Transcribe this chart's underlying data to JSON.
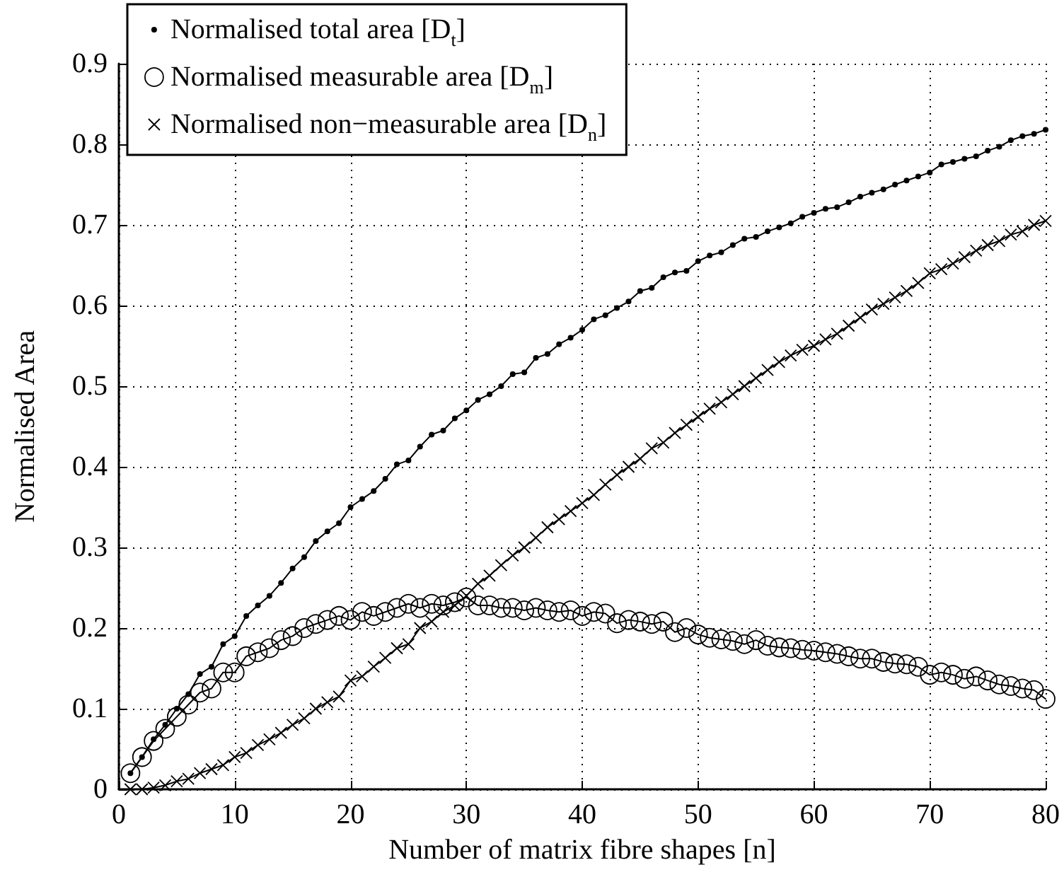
{
  "chart_data": {
    "type": "line",
    "xlabel": "Number of matrix fibre shapes [n]",
    "ylabel": "Normalised Area",
    "x": [
      1,
      2,
      3,
      4,
      5,
      6,
      7,
      8,
      9,
      10,
      11,
      12,
      13,
      14,
      15,
      16,
      17,
      18,
      19,
      20,
      21,
      22,
      23,
      24,
      25,
      26,
      27,
      28,
      29,
      30,
      31,
      32,
      33,
      34,
      35,
      36,
      37,
      38,
      39,
      40,
      41,
      42,
      43,
      44,
      45,
      46,
      47,
      48,
      49,
      50,
      51,
      52,
      53,
      54,
      55,
      56,
      57,
      58,
      59,
      60,
      61,
      62,
      63,
      64,
      65,
      66,
      67,
      68,
      69,
      70,
      71,
      72,
      73,
      74,
      75,
      76,
      77,
      78,
      79,
      80
    ],
    "series": [
      {
        "name": "Normalised total area [D$_{t}$]",
        "color": "#000000",
        "marker": "dot",
        "line_style": "solid",
        "values": [
          0.02,
          0.04,
          0.062,
          0.08,
          0.1,
          0.118,
          0.143,
          0.152,
          0.18,
          0.19,
          0.215,
          0.228,
          0.24,
          0.256,
          0.274,
          0.288,
          0.308,
          0.32,
          0.33,
          0.35,
          0.36,
          0.37,
          0.385,
          0.403,
          0.408,
          0.425,
          0.44,
          0.445,
          0.46,
          0.47,
          0.483,
          0.49,
          0.5,
          0.515,
          0.517,
          0.535,
          0.54,
          0.552,
          0.56,
          0.57,
          0.583,
          0.588,
          0.597,
          0.605,
          0.618,
          0.622,
          0.635,
          0.641,
          0.643,
          0.655,
          0.662,
          0.666,
          0.675,
          0.683,
          0.685,
          0.692,
          0.697,
          0.702,
          0.71,
          0.715,
          0.72,
          0.722,
          0.728,
          0.735,
          0.74,
          0.744,
          0.75,
          0.755,
          0.76,
          0.765,
          0.775,
          0.778,
          0.782,
          0.785,
          0.792,
          0.797,
          0.805,
          0.81,
          0.813,
          0.818
        ]
      },
      {
        "name": "Normalised measurable area [D$_{m}$]",
        "color": "#000000",
        "marker": "circle",
        "line_style": "solid",
        "values": [
          0.02,
          0.04,
          0.06,
          0.075,
          0.09,
          0.105,
          0.12,
          0.125,
          0.145,
          0.145,
          0.165,
          0.17,
          0.175,
          0.185,
          0.19,
          0.2,
          0.205,
          0.21,
          0.215,
          0.21,
          0.22,
          0.215,
          0.22,
          0.225,
          0.23,
          0.225,
          0.23,
          0.228,
          0.232,
          0.238,
          0.228,
          0.228,
          0.225,
          0.225,
          0.222,
          0.225,
          0.222,
          0.22,
          0.222,
          0.215,
          0.22,
          0.218,
          0.206,
          0.21,
          0.208,
          0.205,
          0.208,
          0.195,
          0.2,
          0.192,
          0.188,
          0.186,
          0.184,
          0.18,
          0.185,
          0.178,
          0.176,
          0.175,
          0.173,
          0.172,
          0.17,
          0.168,
          0.165,
          0.162,
          0.162,
          0.158,
          0.156,
          0.155,
          0.152,
          0.142,
          0.145,
          0.142,
          0.137,
          0.14,
          0.135,
          0.13,
          0.128,
          0.125,
          0.123,
          0.112
        ]
      },
      {
        "name": "Normalised non−measurable area [D$_{n}$]",
        "color": "#000000",
        "marker": "cross",
        "line_style": "solid",
        "values": [
          0,
          0,
          0.002,
          0.005,
          0.01,
          0.013,
          0.02,
          0.025,
          0.03,
          0.04,
          0.045,
          0.055,
          0.062,
          0.07,
          0.08,
          0.088,
          0.1,
          0.108,
          0.115,
          0.135,
          0.14,
          0.152,
          0.163,
          0.175,
          0.18,
          0.2,
          0.208,
          0.22,
          0.228,
          0.24,
          0.255,
          0.265,
          0.278,
          0.29,
          0.3,
          0.312,
          0.325,
          0.335,
          0.345,
          0.355,
          0.365,
          0.378,
          0.39,
          0.4,
          0.41,
          0.423,
          0.43,
          0.442,
          0.452,
          0.462,
          0.472,
          0.48,
          0.49,
          0.5,
          0.51,
          0.52,
          0.53,
          0.538,
          0.545,
          0.55,
          0.558,
          0.565,
          0.575,
          0.585,
          0.595,
          0.602,
          0.61,
          0.618,
          0.628,
          0.64,
          0.645,
          0.652,
          0.66,
          0.668,
          0.675,
          0.68,
          0.688,
          0.692,
          0.7,
          0.705
        ]
      }
    ],
    "xlim": [
      0,
      80
    ],
    "xticks": [
      0,
      10,
      20,
      30,
      40,
      50,
      60,
      70,
      80
    ],
    "ylim": [
      0,
      0.9
    ],
    "yticks": [
      0,
      0.1,
      0.2,
      0.3,
      0.4,
      0.5,
      0.6,
      0.7,
      0.8,
      0.9
    ],
    "grid": true,
    "legend": "top left"
  }
}
